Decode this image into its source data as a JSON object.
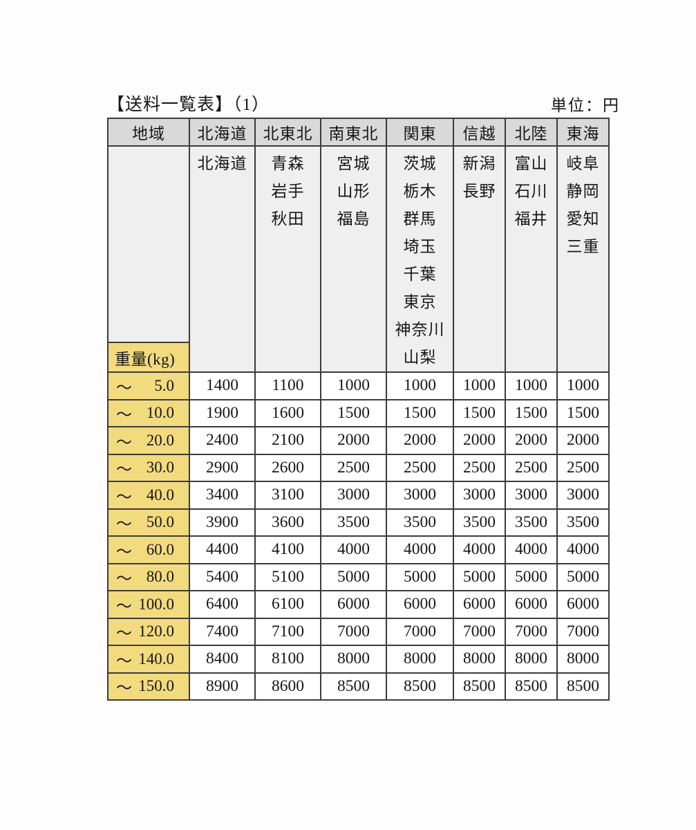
{
  "page": {
    "title": "【送料一覧表】（1）",
    "unit_label": "単位：円"
  },
  "table": {
    "region_header": "地域",
    "weight_header": "重量(kg)",
    "tilde": "～",
    "columns": [
      {
        "region": "北海道",
        "prefectures": [
          "北海道"
        ]
      },
      {
        "region": "北東北",
        "prefectures": [
          "青森",
          "岩手",
          "秋田"
        ]
      },
      {
        "region": "南東北",
        "prefectures": [
          "宮城",
          "山形",
          "福島"
        ]
      },
      {
        "region": "関東",
        "prefectures": [
          "茨城",
          "栃木",
          "群馬",
          "埼玉",
          "千葉",
          "東京",
          "神奈川",
          "山梨"
        ]
      },
      {
        "region": "信越",
        "prefectures": [
          "新潟",
          "長野"
        ]
      },
      {
        "region": "北陸",
        "prefectures": [
          "富山",
          "石川",
          "福井"
        ]
      },
      {
        "region": "東海",
        "prefectures": [
          "岐阜",
          "静岡",
          "愛知",
          "三重"
        ]
      }
    ],
    "rows": [
      {
        "weight": "5.0",
        "values": [
          1400,
          1100,
          1000,
          1000,
          1000,
          1000,
          1000
        ]
      },
      {
        "weight": "10.0",
        "values": [
          1900,
          1600,
          1500,
          1500,
          1500,
          1500,
          1500
        ]
      },
      {
        "weight": "20.0",
        "values": [
          2400,
          2100,
          2000,
          2000,
          2000,
          2000,
          2000
        ]
      },
      {
        "weight": "30.0",
        "values": [
          2900,
          2600,
          2500,
          2500,
          2500,
          2500,
          2500
        ]
      },
      {
        "weight": "40.0",
        "values": [
          3400,
          3100,
          3000,
          3000,
          3000,
          3000,
          3000
        ]
      },
      {
        "weight": "50.0",
        "values": [
          3900,
          3600,
          3500,
          3500,
          3500,
          3500,
          3500
        ]
      },
      {
        "weight": "60.0",
        "values": [
          4400,
          4100,
          4000,
          4000,
          4000,
          4000,
          4000
        ]
      },
      {
        "weight": "80.0",
        "values": [
          5400,
          5100,
          5000,
          5000,
          5000,
          5000,
          5000
        ]
      },
      {
        "weight": "100.0",
        "values": [
          6400,
          6100,
          6000,
          6000,
          6000,
          6000,
          6000
        ]
      },
      {
        "weight": "120.0",
        "values": [
          7400,
          7100,
          7000,
          7000,
          7000,
          7000,
          7000
        ]
      },
      {
        "weight": "140.0",
        "values": [
          8400,
          8100,
          8000,
          8000,
          8000,
          8000,
          8000
        ]
      },
      {
        "weight": "150.0",
        "values": [
          8900,
          8600,
          8500,
          8500,
          8500,
          8500,
          8500
        ]
      }
    ]
  },
  "colors": {
    "weight_accent": "#f2da7e",
    "header_gray": "#d9d9d9",
    "prefecture_gray": "#efefef",
    "border": "#3b3b3b",
    "cell_white": "#ffffff"
  }
}
